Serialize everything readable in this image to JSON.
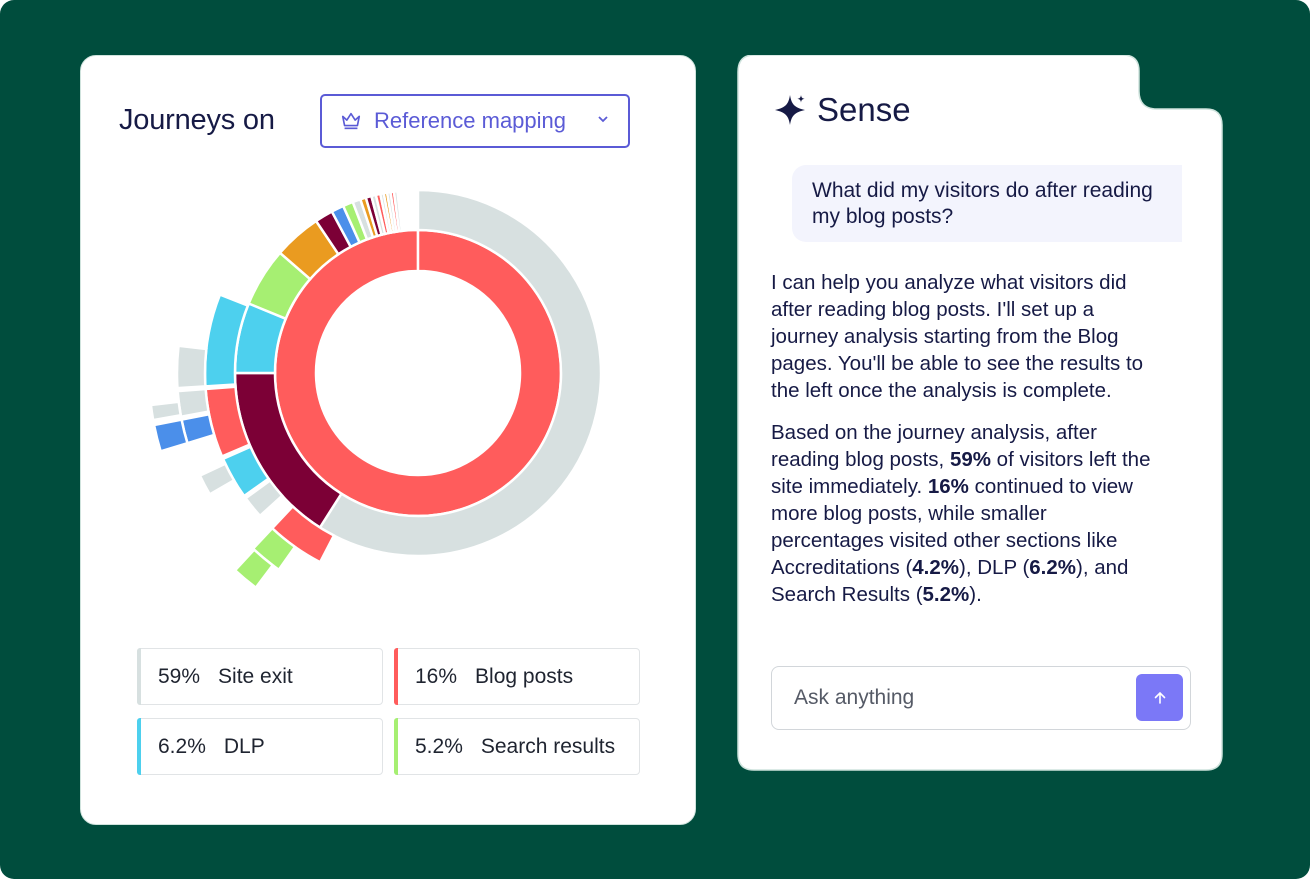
{
  "journey": {
    "title": "Journeys on",
    "dropdown": {
      "selected": "Reference mapping",
      "icon": "crown-icon"
    }
  },
  "chart_data": {
    "type": "sunburst",
    "rings": [
      {
        "level": 1,
        "segments": [
          {
            "name": "Blog posts",
            "value": 100,
            "color": "#ff5c5c"
          }
        ]
      },
      {
        "level": 2,
        "segments": [
          {
            "name": "Site exit",
            "value": 59,
            "color": "#d7e0e0"
          },
          {
            "name": "Blog posts",
            "value": 16,
            "color": "#7c0036"
          },
          {
            "name": "DLP",
            "value": 6.2,
            "color": "#4dd0ee"
          },
          {
            "name": "Search results",
            "value": 5.2,
            "color": "#a6ef72"
          },
          {
            "name": "Accreditations",
            "value": 4.2,
            "color": "#ea9b20"
          },
          {
            "name": "Other",
            "value": 1.6,
            "color": "#7c0036"
          },
          {
            "name": "Other",
            "value": 1.1,
            "color": "#4b8fea"
          },
          {
            "name": "Other",
            "value": 0.9,
            "color": "#a6ef72"
          },
          {
            "name": "Other",
            "value": 0.7,
            "color": "#d7e0e0"
          },
          {
            "name": "Other",
            "value": 0.5,
            "color": "#ea9b20"
          },
          {
            "name": "Other",
            "value": 0.5,
            "color": "#7c0036"
          },
          {
            "name": "Other",
            "value": 0.4,
            "color": "#d7e0e0"
          },
          {
            "name": "Other",
            "value": 0.4,
            "color": "#ff5c5c"
          },
          {
            "name": "Other",
            "value": 0.3,
            "color": "#d7e0e0"
          },
          {
            "name": "Other",
            "value": 0.3,
            "color": "#ea9b20"
          },
          {
            "name": "Other",
            "value": 0.3,
            "color": "#d7e0e0"
          },
          {
            "name": "Other",
            "value": 0.3,
            "color": "#ff5c5c"
          },
          {
            "name": "Other",
            "value": 0.3,
            "color": "#d7e0e0"
          }
        ]
      }
    ],
    "outer_arcs": [
      {
        "ring": 3,
        "start": 57.6,
        "end": 62.0,
        "color": "#ff5c5c"
      },
      {
        "ring": 3,
        "start": 63.3,
        "end": 65.0,
        "color": "#d7e0e0"
      },
      {
        "ring": 3,
        "start": 65.2,
        "end": 68.4,
        "color": "#4dd0ee"
      },
      {
        "ring": 3,
        "start": 68.6,
        "end": 73.8,
        "color": "#ff5c5c"
      },
      {
        "ring": 3,
        "start": 74.0,
        "end": 81.0,
        "color": "#4dd0ee"
      },
      {
        "ring": 4,
        "start": 59.8,
        "end": 62.0,
        "color": "#a6ef72"
      },
      {
        "ring": 4,
        "start": 66.6,
        "end": 68.0,
        "color": "#d7e0e0"
      },
      {
        "ring": 4,
        "start": 70.3,
        "end": 71.9,
        "color": "#4b8fea"
      },
      {
        "ring": 4,
        "start": 72.1,
        "end": 73.8,
        "color": "#d7e0e0"
      },
      {
        "ring": 4,
        "start": 74.0,
        "end": 76.8,
        "color": "#d7e0e0"
      },
      {
        "ring": 5,
        "start": 60.3,
        "end": 61.9,
        "color": "#a6ef72"
      },
      {
        "ring": 5,
        "start": 70.3,
        "end": 71.9,
        "color": "#4b8fea"
      },
      {
        "ring": 5,
        "start": 72.2,
        "end": 73.1,
        "color": "#d7e0e0"
      }
    ]
  },
  "legend": [
    {
      "pct": "59%",
      "label": "Site exit",
      "color": "#d7e0e0"
    },
    {
      "pct": "16%",
      "label": "Blog posts",
      "color": "#ff5c5c"
    },
    {
      "pct": "6.2%",
      "label": "DLP",
      "color": "#4dd0ee"
    },
    {
      "pct": "5.2%",
      "label": "Search results",
      "color": "#a6ef72"
    }
  ],
  "sense": {
    "title": "Sense",
    "user_message": "What did my visitors do after reading my blog posts?",
    "reply_p1": "I can help you analyze what visitors did after reading blog posts. I'll set up a journey analysis starting from the Blog pages. You'll be able to see the results to the left once the analysis is complete.",
    "reply_p2": {
      "t1": "Based on the journey analysis, after reading blog posts, ",
      "b1": "59%",
      "t2": " of visitors left the site immediately. ",
      "b2": "16%",
      "t3": " continued to view more blog posts, while smaller percentages visited other sections like Accreditations (",
      "b3": "4.2%",
      "t4": "), DLP (",
      "b4": "6.2%",
      "t5": "), and Search Results (",
      "b5": "5.2%",
      "t6": ")."
    },
    "input_placeholder": "Ask anything",
    "send_icon": "arrow-up-icon"
  }
}
